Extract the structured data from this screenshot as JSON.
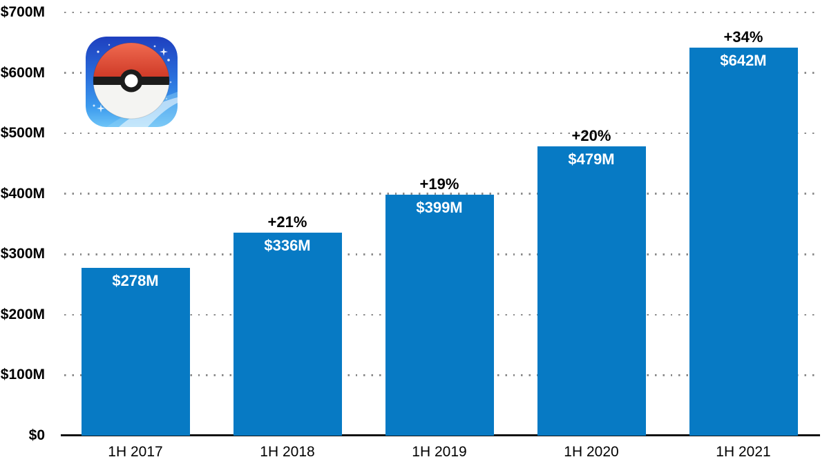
{
  "app_icon": {
    "name": "Pokemon GO app icon"
  },
  "chart_data": {
    "type": "bar",
    "title": "",
    "xlabel": "",
    "ylabel": "",
    "categories": [
      "1H 2017",
      "1H 2018",
      "1H 2019",
      "1H 2020",
      "1H 2021"
    ],
    "values": [
      278,
      336,
      399,
      479,
      642
    ],
    "value_labels": [
      "$278M",
      "$336M",
      "$399M",
      "$479M",
      "$642M"
    ],
    "growth_labels": [
      "",
      "+21%",
      "+19%",
      "+20%",
      "+34%"
    ],
    "ylim": [
      0,
      700
    ],
    "ytick_values": [
      0,
      100,
      200,
      300,
      400,
      500,
      600,
      700
    ],
    "ytick_labels": [
      "$0",
      "$100M",
      "$200M",
      "$300M",
      "$400M",
      "$500M",
      "$600M",
      "$700M"
    ],
    "grid": "horizontal-dotted",
    "legend": "none",
    "bar_color": "#077ac4",
    "gridline_color": "#8c8c8c",
    "axis_color": "#111111",
    "value_label_color": "#ffffff",
    "growth_label_color": "#000000"
  }
}
